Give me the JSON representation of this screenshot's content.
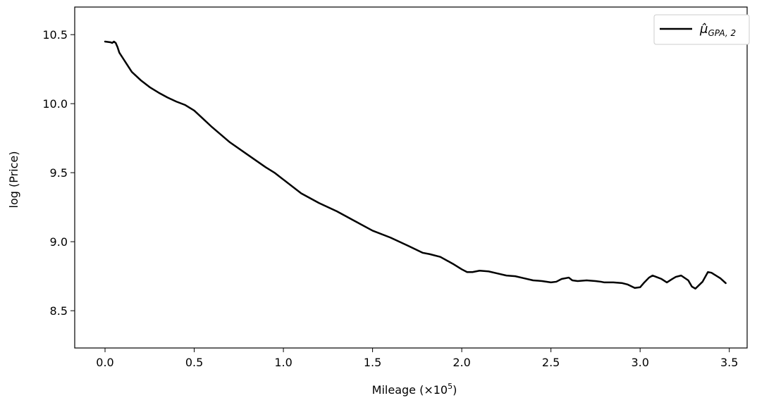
{
  "chart_data": {
    "type": "line",
    "xlabel": "Mileage (×10",
    "xlabel_exponent": "5",
    "xlabel_close": ")",
    "ylabel": "log (Price)",
    "xlim": [
      -0.17,
      3.6
    ],
    "ylim": [
      8.23,
      10.7
    ],
    "xticks": [
      0.0,
      0.5,
      1.0,
      1.5,
      2.0,
      2.5,
      3.0,
      3.5
    ],
    "xtick_labels": [
      "0.0",
      "0.5",
      "1.0",
      "1.5",
      "2.0",
      "2.5",
      "3.0",
      "3.5"
    ],
    "yticks": [
      8.5,
      9.0,
      9.5,
      10.0,
      10.5
    ],
    "ytick_labels": [
      "8.5",
      "9.0",
      "9.5",
      "10.0",
      "10.5"
    ],
    "grid": false,
    "legend_position": "top-right",
    "series": [
      {
        "name": "μ̂",
        "name_subscript": "GPA, 2",
        "color": "#000000",
        "x": [
          0.0,
          0.03,
          0.04,
          0.05,
          0.06,
          0.07,
          0.08,
          0.1,
          0.12,
          0.15,
          0.2,
          0.25,
          0.3,
          0.35,
          0.4,
          0.45,
          0.5,
          0.55,
          0.6,
          0.7,
          0.8,
          0.9,
          0.95,
          1.0,
          1.1,
          1.2,
          1.3,
          1.4,
          1.5,
          1.6,
          1.7,
          1.78,
          1.82,
          1.88,
          1.95,
          2.0,
          2.03,
          2.06,
          2.1,
          2.15,
          2.2,
          2.25,
          2.3,
          2.35,
          2.4,
          2.45,
          2.5,
          2.53,
          2.56,
          2.6,
          2.62,
          2.65,
          2.7,
          2.75,
          2.78,
          2.8,
          2.85,
          2.9,
          2.93,
          2.97,
          3.0,
          3.02,
          3.05,
          3.07,
          3.09,
          3.12,
          3.15,
          3.18,
          3.2,
          3.23,
          3.27,
          3.29,
          3.31,
          3.35,
          3.38,
          3.4,
          3.45,
          3.48
        ],
        "y": [
          10.45,
          10.445,
          10.44,
          10.45,
          10.44,
          10.41,
          10.37,
          10.33,
          10.29,
          10.23,
          10.17,
          10.12,
          10.08,
          10.045,
          10.015,
          9.99,
          9.95,
          9.89,
          9.83,
          9.72,
          9.63,
          9.54,
          9.5,
          9.45,
          9.35,
          9.28,
          9.22,
          9.15,
          9.08,
          9.03,
          8.97,
          8.92,
          8.91,
          8.89,
          8.84,
          8.8,
          8.78,
          8.78,
          8.79,
          8.785,
          8.77,
          8.755,
          8.75,
          8.735,
          8.72,
          8.715,
          8.705,
          8.71,
          8.73,
          8.74,
          8.72,
          8.715,
          8.72,
          8.715,
          8.71,
          8.705,
          8.705,
          8.7,
          8.69,
          8.665,
          8.67,
          8.7,
          8.74,
          8.755,
          8.745,
          8.73,
          8.705,
          8.73,
          8.745,
          8.755,
          8.72,
          8.675,
          8.66,
          8.71,
          8.78,
          8.775,
          8.735,
          8.7
        ]
      }
    ]
  }
}
